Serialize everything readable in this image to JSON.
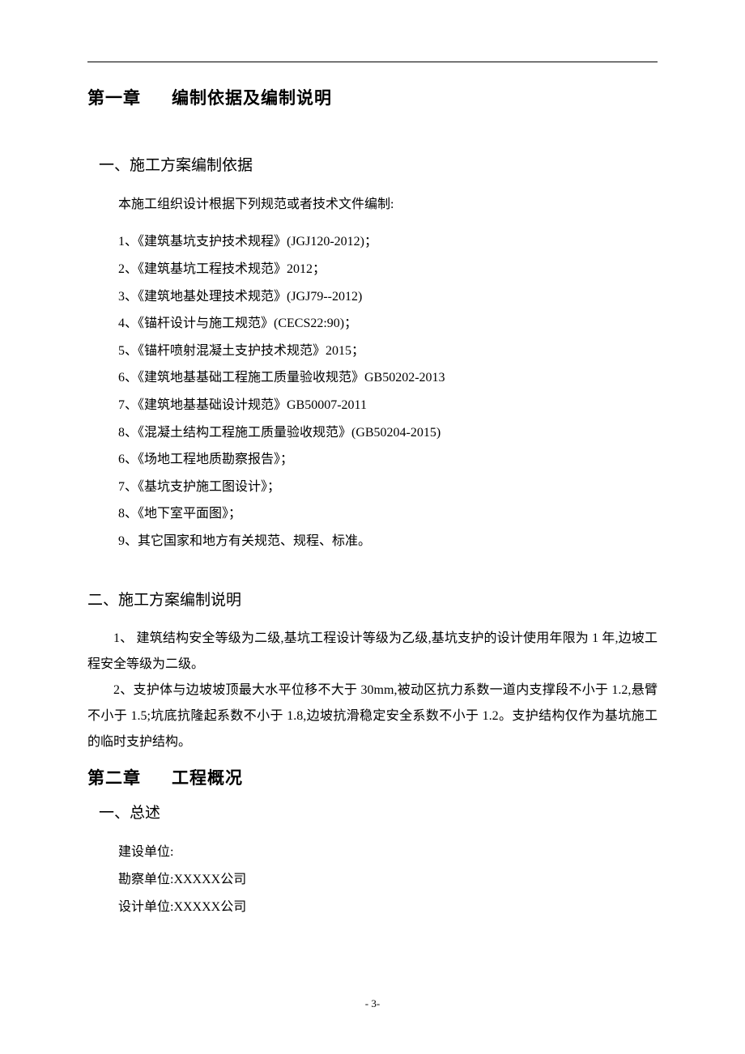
{
  "chapter1": {
    "title_prefix": "第一章",
    "title_text": "编制依据及编制说明"
  },
  "section1": {
    "title": "一、施工方案编制依据",
    "intro": "本施工组织设计根据下列规范或者技术文件编制:",
    "items": [
      "1、《建筑基坑支护技术规程》(JGJ120-2012)；",
      "2、《建筑基坑工程技术规范》2012；",
      "3、《建筑地基处理技术规范》(JGJ79--2012)",
      "4、《锚杆设计与施工规范》(CECS22:90)；",
      "5、《锚杆喷射混凝土支护技术规范》2015；",
      "6、《建筑地基基础工程施工质量验收规范》GB50202-2013",
      "7、《建筑地基基础设计规范》GB50007-2011",
      "8、《混凝土结构工程施工质量验收规范》(GB50204-2015)",
      "6、《场地工程地质勘察报告》；",
      "7、《基坑支护施工图设计》；",
      "8、《地下室平面图》；",
      "9、其它国家和地方有关规范、规程、标准。"
    ]
  },
  "section2": {
    "title": "二、施工方案编制说明",
    "para1": "1、 建筑结构安全等级为二级,基坑工程设计等级为乙级,基坑支护的设计使用年限为 1 年,边坡工程安全等级为二级。",
    "para2": "2、支护体与边坡坡顶最大水平位移不大于 30mm,被动区抗力系数一道内支撑段不小于 1.2,悬臂不小于 1.5;坑底抗隆起系数不小于 1.8,边坡抗滑稳定安全系数不小于 1.2。支护结构仅作为基坑施工的临时支护结构。"
  },
  "chapter2": {
    "title_prefix": "第二章",
    "title_text": "工程概况"
  },
  "section3": {
    "title": "一、总述",
    "units": [
      "建设单位:",
      "勘察单位:XXXXX公司",
      "设计单位:XXXXX公司"
    ]
  },
  "page_number": "- 3-"
}
